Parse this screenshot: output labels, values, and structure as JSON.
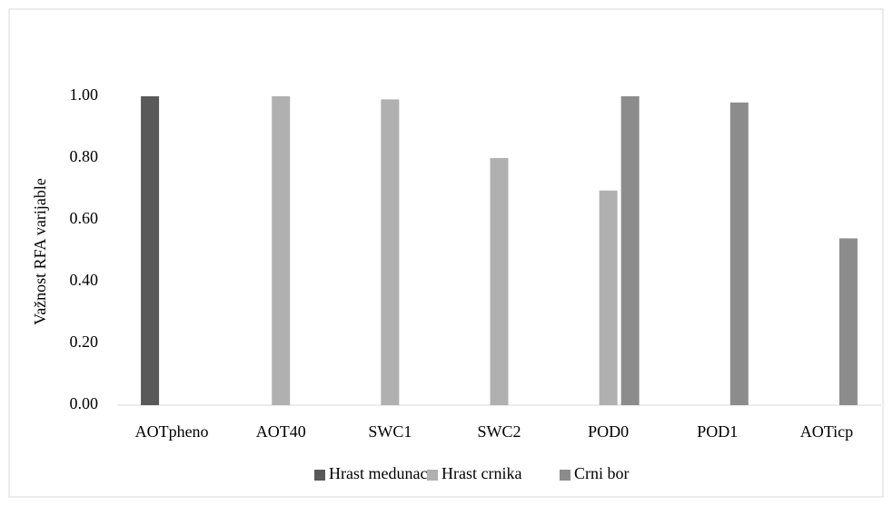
{
  "chart_data": {
    "type": "bar",
    "y_label": "Važnost RFA varijable",
    "categories": [
      "AOTpheno",
      "AOT40",
      "SWC1",
      "SWC2",
      "POD0",
      "POD1",
      "AOTicp"
    ],
    "series": [
      {
        "name": "Hrast medunac",
        "color": "#595959",
        "values": [
          1.0,
          null,
          null,
          null,
          null,
          null,
          null
        ]
      },
      {
        "name": "Hrast crnika",
        "color": "#b0b0b0",
        "values": [
          null,
          1.0,
          0.99,
          0.8,
          0.695,
          null,
          null
        ]
      },
      {
        "name": "Crni bor",
        "color": "#8c8c8c",
        "values": [
          null,
          null,
          null,
          null,
          1.0,
          0.98,
          0.54
        ]
      }
    ],
    "ylim": [
      0,
      1.2
    ],
    "yticks": [
      {
        "value": 0,
        "label": "0.00"
      },
      {
        "value": 0.2,
        "label": "0.20"
      },
      {
        "value": 0.4,
        "label": "0.40"
      },
      {
        "value": 0.6,
        "label": "0.60"
      },
      {
        "value": 0.8,
        "label": "0.80"
      },
      {
        "value": 1.0,
        "label": "1.00"
      }
    ],
    "legend": "bottom"
  }
}
